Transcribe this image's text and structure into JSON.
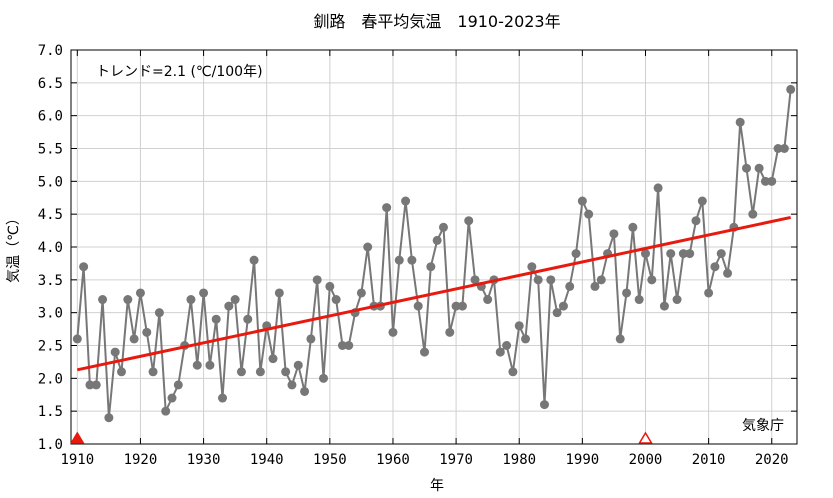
{
  "chart_data": {
    "type": "line",
    "title": "釧路　春平均気温　1910-2023年",
    "xlabel": "年",
    "ylabel": "気温（℃）",
    "xlim": [
      1909,
      2024
    ],
    "ylim": [
      1.0,
      7.0
    ],
    "x_ticks": [
      "1910",
      "1920",
      "1930",
      "1940",
      "1950",
      "1960",
      "1970",
      "1980",
      "1990",
      "2000",
      "2010",
      "2020"
    ],
    "y_ticks": [
      "1.0",
      "1.5",
      "2.0",
      "2.5",
      "3.0",
      "3.5",
      "4.0",
      "4.5",
      "5.0",
      "5.5",
      "6.0",
      "6.5",
      "7.0"
    ],
    "grid": true,
    "trend_label": "トレンド=2.1 (℃/100年)",
    "trend": {
      "x": [
        1910,
        2023
      ],
      "y": [
        2.13,
        4.45
      ]
    },
    "source_label": "気象庁",
    "series": [
      {
        "x": [
          1910,
          1911,
          1912,
          1913,
          1914,
          1915,
          1916,
          1917,
          1918,
          1919,
          1920,
          1921,
          1922,
          1923,
          1924,
          1925,
          1926,
          1927,
          1928,
          1929,
          1930,
          1931,
          1932,
          1933,
          1934,
          1935,
          1936,
          1937,
          1938,
          1939,
          1940,
          1941,
          1942,
          1943,
          1944,
          1945,
          1946,
          1947,
          1948,
          1949,
          1950,
          1951,
          1952,
          1953,
          1954,
          1955,
          1956,
          1957,
          1958,
          1959,
          1960,
          1961,
          1962,
          1963,
          1964,
          1965,
          1966,
          1967,
          1968,
          1969,
          1970,
          1971,
          1972,
          1973,
          1974,
          1975,
          1976,
          1977,
          1978,
          1979,
          1980,
          1981,
          1982,
          1983,
          1984,
          1985,
          1986,
          1987,
          1988,
          1989,
          1990,
          1991,
          1992,
          1993,
          1994,
          1995,
          1996,
          1997,
          1998,
          1999,
          2000,
          2001,
          2002,
          2003,
          2004,
          2005,
          2006,
          2007,
          2008,
          2009,
          2010,
          2011,
          2012,
          2013,
          2014,
          2015,
          2016,
          2017,
          2018,
          2019,
          2020,
          2021,
          2022,
          2023
        ],
        "values": [
          2.6,
          3.7,
          1.9,
          1.9,
          3.2,
          1.4,
          2.4,
          2.1,
          3.2,
          2.6,
          3.3,
          2.7,
          2.1,
          3.0,
          1.5,
          1.7,
          1.9,
          2.5,
          3.2,
          2.2,
          3.3,
          2.2,
          2.9,
          1.7,
          3.1,
          3.2,
          2.1,
          2.9,
          3.8,
          2.1,
          2.8,
          2.3,
          3.3,
          2.1,
          1.9,
          2.2,
          1.8,
          2.6,
          3.5,
          2.0,
          3.4,
          3.2,
          2.5,
          2.5,
          3.0,
          3.3,
          4.0,
          3.1,
          3.1,
          4.6,
          2.7,
          3.8,
          4.7,
          3.8,
          3.1,
          2.4,
          3.7,
          4.1,
          4.3,
          2.7,
          3.1,
          3.1,
          4.4,
          3.5,
          3.4,
          3.2,
          3.5,
          2.4,
          2.5,
          2.1,
          2.8,
          2.6,
          3.7,
          3.5,
          1.6,
          3.5,
          3.0,
          3.1,
          3.4,
          3.9,
          4.7,
          4.5,
          3.4,
          3.5,
          3.9,
          4.2,
          2.6,
          3.3,
          4.3,
          3.2,
          3.9,
          3.5,
          4.9,
          3.1,
          3.9,
          3.2,
          3.9,
          3.9,
          4.4,
          4.7,
          3.3,
          3.7,
          3.9,
          3.6,
          4.3,
          5.9,
          5.2,
          4.5,
          5.2,
          5.0,
          5.0,
          5.5,
          5.5,
          6.4
        ]
      }
    ],
    "markers": [
      {
        "x": 1910,
        "style": "filled-triangle"
      },
      {
        "x": 2000,
        "style": "open-triangle"
      }
    ],
    "colors": {
      "series": "#777777",
      "trend": "#e8190f",
      "marker": "#e8190f",
      "grid": "#d0d0d0"
    }
  }
}
